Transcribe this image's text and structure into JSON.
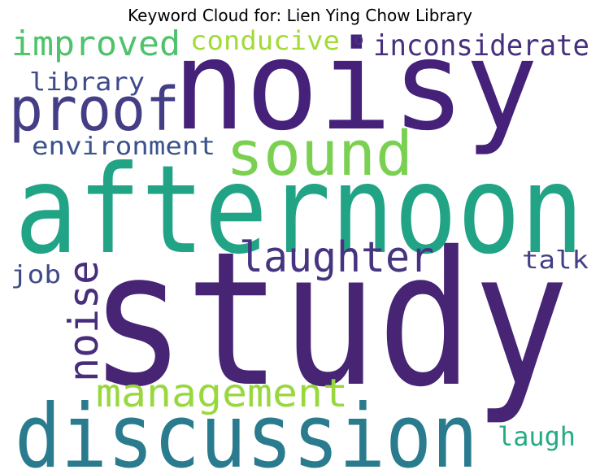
{
  "title": "Keyword Cloud for: Lien Ying Chow Library",
  "words": [
    {
      "text": "study",
      "color": "#482475"
    },
    {
      "text": "afternoon",
      "color": "#21a386"
    },
    {
      "text": "noisy",
      "color": "#45217a"
    },
    {
      "text": "discussion",
      "color": "#2a7b8e"
    },
    {
      "text": "proof",
      "color": "#433e85"
    },
    {
      "text": "sound",
      "color": "#7ad151"
    },
    {
      "text": "laughter",
      "color": "#463480"
    },
    {
      "text": "noise",
      "color": "#472d7b"
    },
    {
      "text": "management",
      "color": "#98d83e"
    },
    {
      "text": "improved",
      "color": "#4ec36b"
    },
    {
      "text": "inconsiderate",
      "color": "#46307e"
    },
    {
      "text": "conducive",
      "color": "#a2da37"
    },
    {
      "text": "library",
      "color": "#3e4a89"
    },
    {
      "text": "environment",
      "color": "#3b528b"
    },
    {
      "text": "talk",
      "color": "#424086"
    },
    {
      "text": "job",
      "color": "#3e4a89"
    },
    {
      "text": "laugh",
      "color": "#25ab82"
    },
    {
      "text": "o",
      "color": "#46307e"
    }
  ]
}
